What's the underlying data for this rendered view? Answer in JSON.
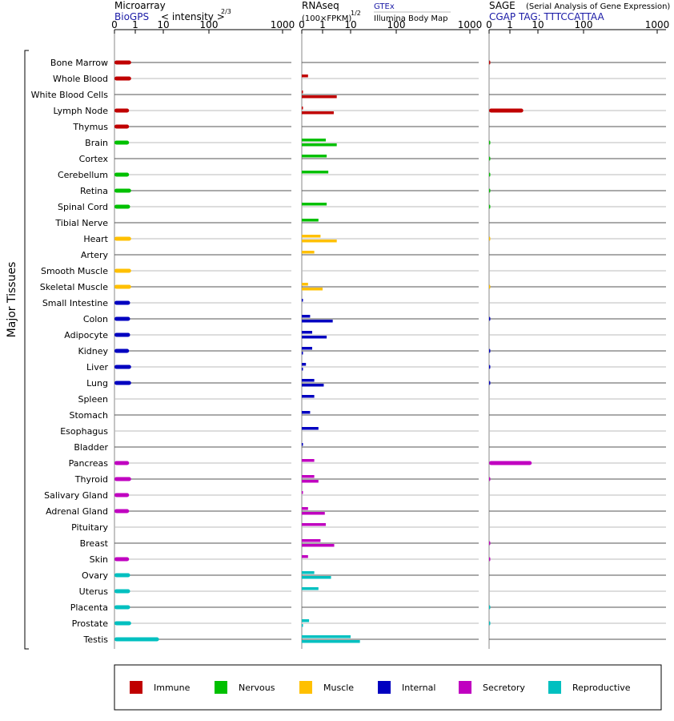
{
  "chart_data": {
    "type": "bar",
    "orientation": "horizontal",
    "y_axis_label": "Major Tissues",
    "categories": [
      "Bone Marrow",
      "Whole Blood",
      "White Blood Cells",
      "Lymph Node",
      "Thymus",
      "Brain",
      "Cortex",
      "Cerebellum",
      "Retina",
      "Spinal Cord",
      "Tibial Nerve",
      "Heart",
      "Artery",
      "Smooth Muscle",
      "Skeletal Muscle",
      "Small Intestine",
      "Colon",
      "Adipocyte",
      "Kidney",
      "Liver",
      "Lung",
      "Spleen",
      "Stomach",
      "Esophagus",
      "Bladder",
      "Pancreas",
      "Thyroid",
      "Salivary Gland",
      "Adrenal Gland",
      "Pituitary",
      "Breast",
      "Skin",
      "Ovary",
      "Uterus",
      "Placenta",
      "Prostate",
      "Testis"
    ],
    "category_groups": [
      "immune",
      "immune",
      "immune",
      "immune",
      "immune",
      "nervous",
      "nervous",
      "nervous",
      "nervous",
      "nervous",
      "nervous",
      "muscle",
      "muscle",
      "muscle",
      "muscle",
      "internal",
      "internal",
      "internal",
      "internal",
      "internal",
      "internal",
      "internal",
      "internal",
      "internal",
      "internal",
      "secretory",
      "secretory",
      "secretory",
      "secretory",
      "secretory",
      "secretory",
      "secretory",
      "reproductive",
      "reproductive",
      "reproductive",
      "reproductive",
      "reproductive"
    ],
    "legend": [
      {
        "key": "immune",
        "label": "Immune",
        "color": "#c00000"
      },
      {
        "key": "nervous",
        "label": "Nervous",
        "color": "#00c000"
      },
      {
        "key": "muscle",
        "label": "Muscle",
        "color": "#ffc000"
      },
      {
        "key": "internal",
        "label": "Internal",
        "color": "#0000c0"
      },
      {
        "key": "secretory",
        "label": "Secretory",
        "color": "#c000c0"
      },
      {
        "key": "reproductive",
        "label": "Reproductive",
        "color": "#00c0c0"
      }
    ],
    "legend_placement": "bottom",
    "tick_labels": [
      "0",
      "1",
      "10",
      "100",
      "1000"
    ],
    "tick_values": [
      0,
      1,
      10,
      100,
      1000
    ],
    "panels": [
      {
        "key": "microarray",
        "title": "Microarray",
        "subtitle_source": "BioGPS",
        "subtitle_scale": "< intensity >",
        "scale_exponent": "2/3",
        "rows": [
          [
            0.8
          ],
          [
            0.8
          ],
          [],
          [
            0.7
          ],
          [
            0.7
          ],
          [
            0.7
          ],
          [],
          [
            0.7
          ],
          [
            0.8
          ],
          [
            0.75
          ],
          [],
          [
            0.8
          ],
          [],
          [
            0.8
          ],
          [
            0.8
          ],
          [
            0.75
          ],
          [
            0.75
          ],
          [
            0.75
          ],
          [
            0.7
          ],
          [
            0.8
          ],
          [
            0.8
          ],
          [],
          [],
          [],
          [],
          [
            0.7
          ],
          [
            0.8
          ],
          [
            0.7
          ],
          [
            0.7
          ],
          [],
          [],
          [
            0.7
          ],
          [
            0.75
          ],
          [
            0.75
          ],
          [
            0.75
          ],
          [
            0.8
          ],
          [
            7
          ]
        ]
      },
      {
        "key": "rnaseq",
        "title": "RNAseq",
        "subtitle_scale": "(100×FPKM)",
        "scale_exponent": "1/2",
        "source_labels": [
          "GTEx",
          "Illumina Body Map"
        ],
        "rows": [
          [],
          [
            0.3
          ],
          [
            0,
            3.2
          ],
          [
            0,
            2.5
          ],
          [],
          [
            1.3,
            3.2
          ],
          [
            1.4
          ],
          [
            1.6
          ],
          [],
          [
            1.4
          ],
          [
            0.8
          ],
          [
            0.9,
            3.2
          ],
          [
            0.6
          ],
          [],
          [
            0.3,
            1.0
          ],
          [
            0.02
          ],
          [
            0.4,
            2.3
          ],
          [
            0.5,
            1.4
          ],
          [
            0.5,
            0.02
          ],
          [
            0.2,
            0.02
          ],
          [
            0.6,
            1.1
          ],
          [
            0.6
          ],
          [
            0.4
          ],
          [
            0.8
          ],
          [
            0.02
          ],
          [
            0.6
          ],
          [
            0.6,
            0.8
          ],
          [
            0.02
          ],
          [
            0.3,
            1.2
          ],
          [
            1.3
          ],
          [
            0.9,
            2.6
          ],
          [
            0.3
          ],
          [
            0.6,
            2.0
          ],
          [
            0.8
          ],
          [],
          [
            0.35,
            0.02
          ],
          [
            10,
            16
          ]
        ]
      },
      {
        "key": "sage",
        "title": "SAGE",
        "subtitle_note": "(Serial Analysis of Gene Expression)",
        "subtitle_source": "CGAP TAG: TTTCCATTAA",
        "rows": [
          [
            0.03
          ],
          [],
          [],
          [
            3
          ],
          [],
          [
            0.02
          ],
          [
            0.02
          ],
          [
            0.02
          ],
          [
            0.02
          ],
          [
            0.02
          ],
          [],
          [
            0.01
          ],
          [],
          [],
          [
            0.01
          ],
          [],
          [
            0.03
          ],
          [],
          [
            0.03
          ],
          [
            0.03
          ],
          [
            0.03
          ],
          [],
          [],
          [],
          [],
          [
            6
          ],
          [
            0.02
          ],
          [],
          [],
          [],
          [
            0.02
          ],
          [
            0.02
          ],
          [],
          [],
          [
            0.02
          ],
          [
            0.02
          ],
          []
        ]
      }
    ]
  }
}
